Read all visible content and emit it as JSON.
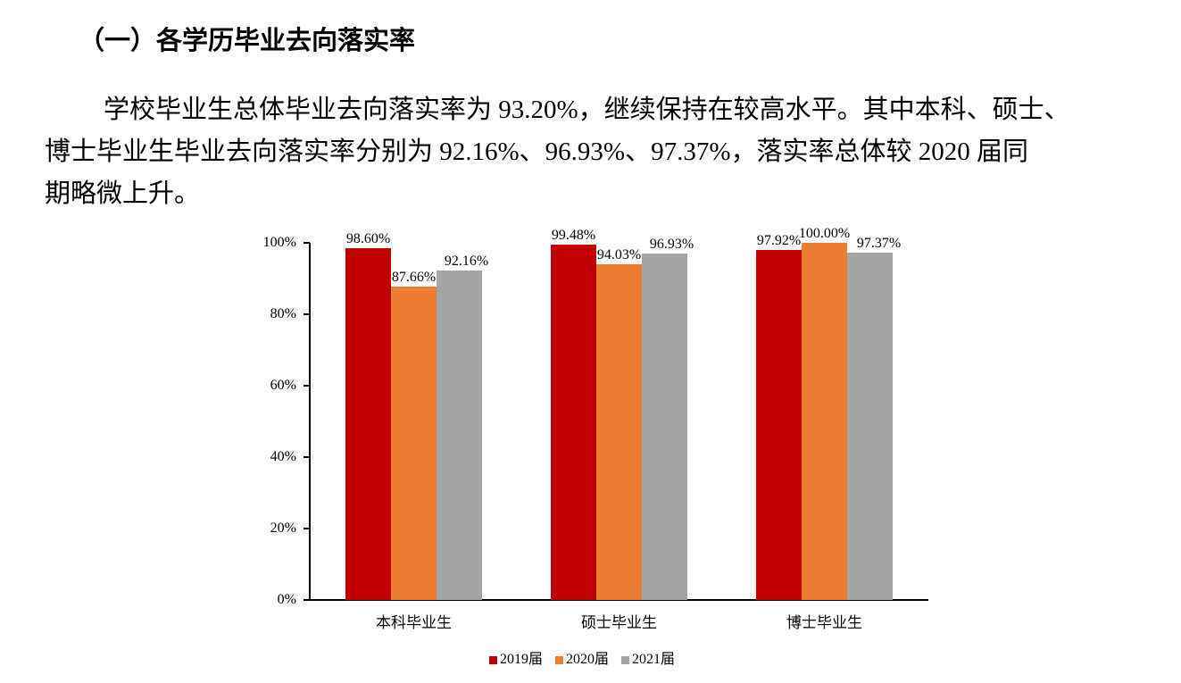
{
  "heading": "（一）各学历毕业去向落实率",
  "paragraph": {
    "line1": "学校毕业生总体毕业去向落实率为 93.20%，继续保持在较高水平。其中本科、硕士、",
    "line2": "博士毕业生毕业去向落实率分别为 92.16%、96.93%、97.37%，落实率总体较 2020 届同",
    "line3": "期略微上升。"
  },
  "colors": {
    "2019": "#C00000",
    "2020": "#ED7D31",
    "2021": "#A5A5A5"
  },
  "chart_data": {
    "type": "bar",
    "title": "",
    "xlabel": "",
    "ylabel": "",
    "ylim": [
      0,
      100
    ],
    "yticks": [
      "0%",
      "20%",
      "40%",
      "60%",
      "80%",
      "100%"
    ],
    "grid": false,
    "legend_position": "bottom",
    "categories": [
      "本科毕业生",
      "硕士毕业生",
      "博士毕业生"
    ],
    "series": [
      {
        "name": "2019届",
        "color": "#C00000",
        "values": [
          98.6,
          99.48,
          97.92
        ],
        "labels": [
          "98.60%",
          "99.48%",
          "97.92%"
        ]
      },
      {
        "name": "2020届",
        "color": "#ED7D31",
        "values": [
          87.66,
          94.03,
          100.0
        ],
        "labels": [
          "87.66%",
          "94.03%",
          "100.00%"
        ]
      },
      {
        "name": "2021届",
        "color": "#A5A5A5",
        "values": [
          92.16,
          96.93,
          97.37
        ],
        "labels": [
          "92.16%",
          "96.93%",
          "97.37%"
        ]
      }
    ]
  }
}
